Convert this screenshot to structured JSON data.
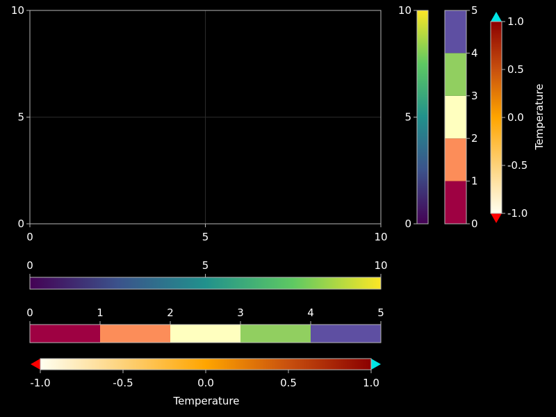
{
  "chart_data": [
    {
      "type": "line",
      "title": "",
      "xlabel": "",
      "ylabel": "",
      "xlim": [
        0,
        10
      ],
      "ylim": [
        0,
        10
      ],
      "xticks": [
        "0",
        "5",
        "10"
      ],
      "yticks": [
        "0",
        "5",
        "10"
      ],
      "grid": true,
      "series": []
    },
    {
      "type": "colorbar",
      "orientation": "vertical",
      "colormap": "viridis",
      "range": [
        0,
        10
      ],
      "ticks": [
        "0",
        "5",
        "10"
      ],
      "label": ""
    },
    {
      "type": "colorbar",
      "orientation": "vertical",
      "colormap": "Spectral (5 categories)",
      "range": [
        0,
        5
      ],
      "ticks": [
        "0",
        "1",
        "2",
        "3",
        "4",
        "5"
      ],
      "categories": [
        "0-1",
        "1-2",
        "2-3",
        "3-4",
        "4-5"
      ],
      "colors": [
        "#9e0142",
        "#fc8d59",
        "#ffffbf",
        "#91cf60",
        "#5e4fa2"
      ],
      "label": ""
    },
    {
      "type": "colorbar",
      "orientation": "vertical",
      "colormap": "heat",
      "range": [
        -1.0,
        1.0
      ],
      "ticks": [
        "-1.0",
        "-0.5",
        "0.0",
        "0.5",
        "1.0"
      ],
      "highclip": "#00e5e5",
      "lowclip": "#ff0000",
      "label": "Temperature"
    },
    {
      "type": "colorbar",
      "orientation": "horizontal",
      "colormap": "viridis",
      "range": [
        0,
        10
      ],
      "ticks": [
        "0",
        "5",
        "10"
      ],
      "label": ""
    },
    {
      "type": "colorbar",
      "orientation": "horizontal",
      "colormap": "Spectral (5 categories)",
      "range": [
        0,
        5
      ],
      "ticks": [
        "0",
        "1",
        "2",
        "3",
        "4",
        "5"
      ],
      "label": ""
    },
    {
      "type": "colorbar",
      "orientation": "horizontal",
      "colormap": "heat",
      "range": [
        -1.0,
        1.0
      ],
      "ticks": [
        "-1.0",
        "-0.5",
        "0.0",
        "0.5",
        "1.0"
      ],
      "highclip": "#00e5e5",
      "lowclip": "#ff0000",
      "label": "Temperature"
    }
  ],
  "colors": {
    "background": "#000000",
    "frame": "#b8b8b8",
    "grid": "#2b2b2b",
    "text": "#ffffff"
  }
}
